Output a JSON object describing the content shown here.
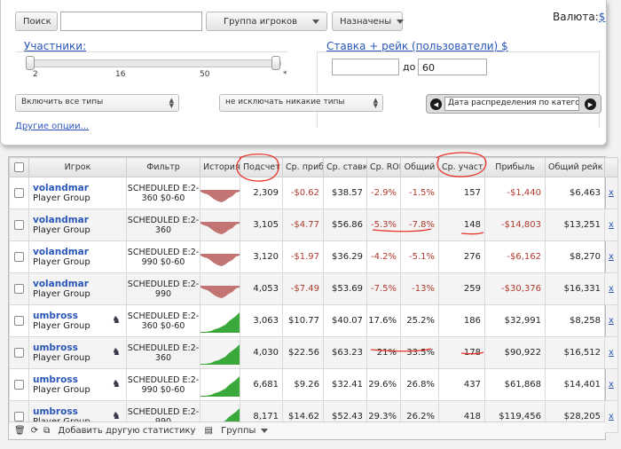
{
  "toolbar": {
    "search_label": "Поиск",
    "search_value": "",
    "group_label": "Группа игроков",
    "assigned_label": "Назначены",
    "currency_label": "Валюта:",
    "currency_value": "$"
  },
  "participants": {
    "label": "Участники:",
    "ticks": [
      "2",
      "16",
      "50",
      "*"
    ],
    "range_low": 0.0,
    "range_high": 0.98
  },
  "stake": {
    "label": "Ставка + рейк (пользователи) $",
    "from_value": "",
    "to_label": "до",
    "to_value": "60"
  },
  "type_filters": {
    "include": "Включить все типы",
    "exclude": "не исключать никакие типы"
  },
  "sort": {
    "prev": "◀",
    "next": "▶",
    "value": "Дата распределения по категориям"
  },
  "other_options": "Другие опции...",
  "table": {
    "headers": [
      "",
      "Игрок",
      "Фильтр",
      "История",
      "Подсчет",
      "Ср. приб",
      "Ср. ставка",
      "Ср. ROI",
      "Общий",
      "Ср. участ",
      "Прибыль",
      "Общий рейк",
      ""
    ],
    "rows": [
      {
        "name": "volandmar",
        "group": "Player Group",
        "filter": "SCHEDULED E:2-360 $0-60",
        "trend": "down",
        "count": "2,309",
        "avg_profit": "-$0.62",
        "avg_stake": "$38.57",
        "avg_roi": "-2.9%",
        "total_roi": "-1.5%",
        "avg_entrants": "157",
        "profit": "-$1,440",
        "rake": "$6,463",
        "remove": "x",
        "badge": ""
      },
      {
        "name": "volandmar",
        "group": "Player Group",
        "filter": "SCHEDULED E:2-360",
        "trend": "down",
        "count": "3,105",
        "avg_profit": "-$4.77",
        "avg_stake": "$56.86",
        "avg_roi": "-5.3%",
        "total_roi": "-7.8%",
        "avg_entrants": "148",
        "profit": "-$14,803",
        "rake": "$13,251",
        "remove": "x",
        "badge": ""
      },
      {
        "name": "volandmar",
        "group": "Player Group",
        "filter": "SCHEDULED E:2-990 $0-60",
        "trend": "down",
        "count": "3,120",
        "avg_profit": "-$1.97",
        "avg_stake": "$36.29",
        "avg_roi": "-4.2%",
        "total_roi": "-5.1%",
        "avg_entrants": "276",
        "profit": "-$6,162",
        "rake": "$8,270",
        "remove": "x",
        "badge": ""
      },
      {
        "name": "volandmar",
        "group": "Player Group",
        "filter": "SCHEDULED E:2-990",
        "trend": "down",
        "count": "4,053",
        "avg_profit": "-$7.49",
        "avg_stake": "$53.69",
        "avg_roi": "-7.5%",
        "total_roi": "-13%",
        "avg_entrants": "259",
        "profit": "-$30,376",
        "rake": "$16,331",
        "remove": "x",
        "badge": ""
      },
      {
        "name": "umbross",
        "group": "Player Group",
        "filter": "SCHEDULED E:2-360 $0-60",
        "trend": "up",
        "count": "3,063",
        "avg_profit": "$10.77",
        "avg_stake": "$40.07",
        "avg_roi": "17.6%",
        "total_roi": "25.2%",
        "avg_entrants": "186",
        "profit": "$32,991",
        "rake": "$8,258",
        "remove": "x",
        "badge": "♞"
      },
      {
        "name": "umbross",
        "group": "Player Group",
        "filter": "SCHEDULED E:2-360",
        "trend": "up",
        "count": "4,030",
        "avg_profit": "$22.56",
        "avg_stake": "$63.23",
        "avg_roi": "21%",
        "total_roi": "33.5%",
        "avg_entrants": "178",
        "profit": "$90,922",
        "rake": "$16,512",
        "remove": "x",
        "badge": "♞"
      },
      {
        "name": "umbross",
        "group": "Player Group",
        "filter": "SCHEDULED E:2-990 $0-60",
        "trend": "up",
        "count": "6,681",
        "avg_profit": "$9.26",
        "avg_stake": "$32.41",
        "avg_roi": "29.6%",
        "total_roi": "26.8%",
        "avg_entrants": "437",
        "profit": "$61,868",
        "rake": "$14,401",
        "remove": "x",
        "badge": "♞"
      },
      {
        "name": "umbross",
        "group": "Player Group",
        "filter": "SCHEDULED E:2-990",
        "trend": "up",
        "count": "8,171",
        "avg_profit": "$14.62",
        "avg_stake": "$52.43",
        "avg_roi": "29.3%",
        "total_roi": "26.2%",
        "avg_entrants": "418",
        "profit": "$119,456",
        "rake": "$28,205",
        "remove": "x",
        "badge": "♞"
      }
    ]
  },
  "footer": {
    "add_stats": "Добавить другую статистику",
    "groups": "Группы"
  },
  "colors": {
    "link": "#2a57b8",
    "negative": "#b03a2e",
    "sparkline_down": "#c27373",
    "sparkline_up": "#3aa83a",
    "annotation": "#e8322a"
  }
}
